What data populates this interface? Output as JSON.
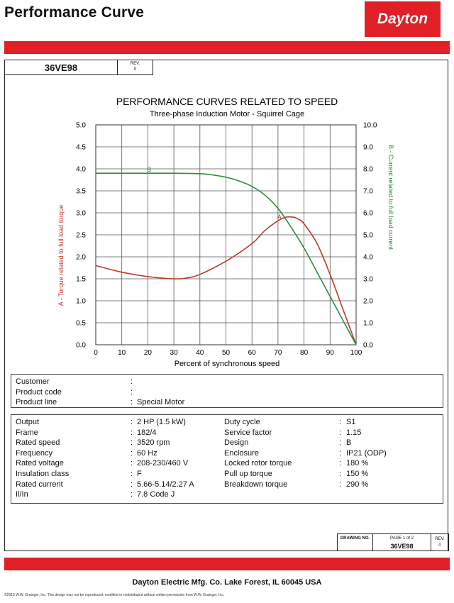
{
  "header": {
    "title": "Performance Curve",
    "brand": "Dayton"
  },
  "doc": {
    "model": "36VE98",
    "rev_label": "REV.",
    "rev_value": "0"
  },
  "chart_data": {
    "type": "line",
    "title": "PERFORMANCE CURVES RELATED TO SPEED",
    "subtitle": "Three-phase Induction Motor - Squirrel Cage",
    "xlabel": "Percent of synchronous speed",
    "ylabel_left": "A - Torque related to full load torque",
    "ylabel_right": "B - Current related to full load current",
    "xlim": [
      0,
      100
    ],
    "ylim_left": [
      0,
      5
    ],
    "ylim_right": [
      0,
      10
    ],
    "x_ticks": [
      "0",
      "10",
      "20",
      "30",
      "40",
      "50",
      "60",
      "70",
      "80",
      "90",
      "100"
    ],
    "y_left_ticks": [
      "0.0",
      "0.5",
      "1.0",
      "1.5",
      "2.0",
      "2.5",
      "3.0",
      "3.5",
      "4.0",
      "4.5",
      "5.0"
    ],
    "y_right_ticks": [
      "0.0",
      "1.0",
      "2.0",
      "3.0",
      "4.0",
      "5.0",
      "6.0",
      "7.0",
      "8.0",
      "9.0",
      "10.0"
    ],
    "grid": true,
    "series": [
      {
        "name": "A",
        "axis": "left",
        "color": "#c0392b",
        "x": [
          0,
          10,
          20,
          30,
          35,
          40,
          50,
          60,
          65,
          70,
          73,
          76,
          78,
          80,
          85,
          90,
          95,
          100
        ],
        "y": [
          1.8,
          1.65,
          1.55,
          1.5,
          1.52,
          1.6,
          1.9,
          2.3,
          2.6,
          2.82,
          2.9,
          2.9,
          2.85,
          2.75,
          2.3,
          1.6,
          0.8,
          0.0
        ]
      },
      {
        "name": "B",
        "axis": "right",
        "color": "#2e8b3e",
        "x": [
          0,
          10,
          20,
          30,
          40,
          45,
          50,
          55,
          60,
          65,
          70,
          75,
          80,
          85,
          90,
          95,
          100
        ],
        "y": [
          7.8,
          7.8,
          7.8,
          7.8,
          7.78,
          7.72,
          7.62,
          7.45,
          7.2,
          6.8,
          6.2,
          5.35,
          4.4,
          3.3,
          2.2,
          1.1,
          0.0
        ]
      }
    ]
  },
  "customer": [
    {
      "label": "Customer",
      "value": ""
    },
    {
      "label": "Product code",
      "value": ""
    },
    {
      "label": "Product line",
      "value": "Special Motor"
    }
  ],
  "specs_left": [
    {
      "label": "Output",
      "value": "2 HP (1.5 kW)"
    },
    {
      "label": "Frame",
      "value": "182/4"
    },
    {
      "label": "Rated speed",
      "value": "3520 rpm"
    },
    {
      "label": "Frequency",
      "value": "60 Hz"
    },
    {
      "label": "Rated voltage",
      "value": "208-230/460 V"
    },
    {
      "label": "Insulation class",
      "value": "F"
    },
    {
      "label": "Rated current",
      "value": "5.66-5.14/2.27 A"
    },
    {
      "label": "Il/In",
      "value": "7.8   Code J"
    }
  ],
  "specs_right": [
    {
      "label": "Duty cycle",
      "value": "S1"
    },
    {
      "label": "Service factor",
      "value": "1.15"
    },
    {
      "label": "Design",
      "value": "B"
    },
    {
      "label": "Enclosure",
      "value": "IP21 (ODP)"
    },
    {
      "label": "Locked rotor torque",
      "value": "180 %"
    },
    {
      "label": "Pull up torque",
      "value": "150 %"
    },
    {
      "label": "Breakdown torque",
      "value": "290 %"
    }
  ],
  "drawing": {
    "label": "DRAWING NO.",
    "page": "PAGE  1  of  2",
    "number": "36VE98",
    "rev_label": "REV.",
    "rev_value": "0"
  },
  "footer": "Dayton Electric Mfg. Co.  Lake Forest, IL  60045  USA",
  "copyright": "©2015 W.W. Grainger, Inc.   This design may not be reproduced, modified or redistributed without written permission from W.W. Grainger, Inc."
}
